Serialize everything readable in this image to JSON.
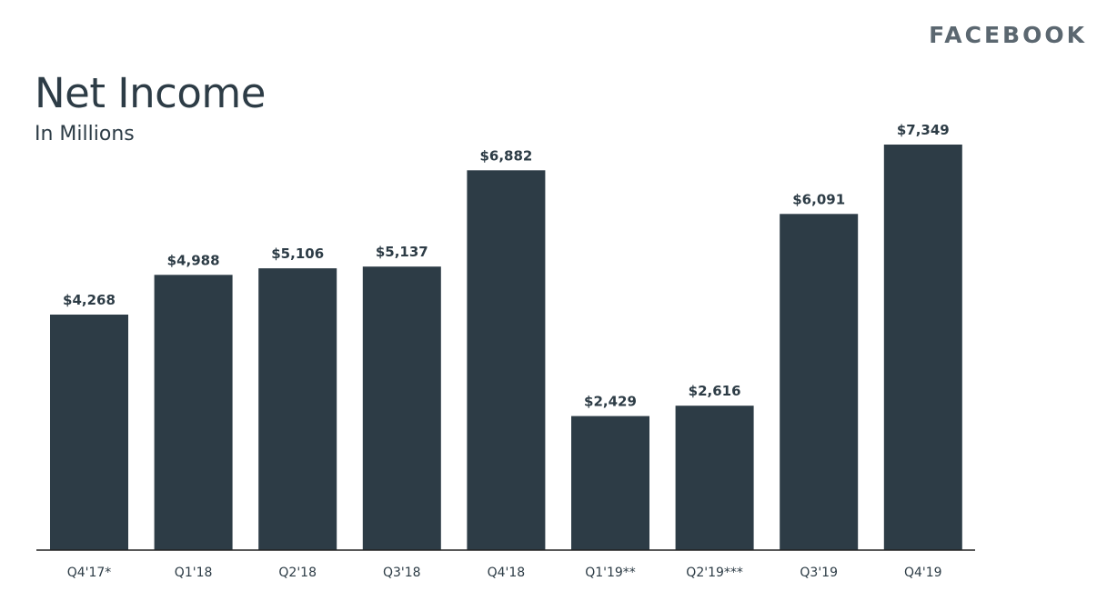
{
  "brand": "FACEBOOK",
  "chart_data": {
    "type": "bar",
    "title": "Net Income",
    "subtitle": "In Millions",
    "categories": [
      "Q4'17*",
      "Q1'18",
      "Q2'18",
      "Q3'18",
      "Q4'18",
      "Q1'19**",
      "Q2'19***",
      "Q3'19",
      "Q4'19"
    ],
    "values": [
      4268,
      4988,
      5106,
      5137,
      6882,
      2429,
      2616,
      6091,
      7349
    ],
    "value_labels": [
      "$4,268",
      "$4,988",
      "$5,106",
      "$5,137",
      "$6,882",
      "$2,429",
      "$2,616",
      "$6,091",
      "$7,349"
    ],
    "ylim": [
      0,
      7349
    ],
    "grid": false,
    "legend": "none",
    "bar_color": "#2d3c46"
  }
}
